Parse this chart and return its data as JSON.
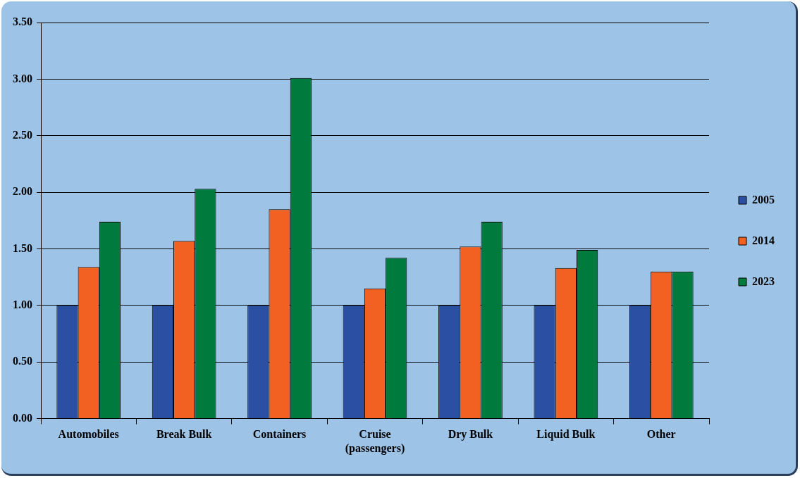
{
  "chart_data": {
    "type": "bar",
    "categories": [
      "Automobiles",
      "Break Bulk",
      "Containers",
      "Cruise (passengers)",
      "Dry Bulk",
      "Liquid Bulk",
      "Other"
    ],
    "series": [
      {
        "name": "2005",
        "color": "#2a4fa3",
        "values": [
          1.0,
          1.0,
          1.0,
          1.0,
          1.0,
          1.0,
          1.0
        ]
      },
      {
        "name": "2014",
        "color": "#f26122",
        "values": [
          1.34,
          1.57,
          1.85,
          1.15,
          1.52,
          1.33,
          1.3
        ]
      },
      {
        "name": "2023",
        "color": "#007a3d",
        "values": [
          1.74,
          2.03,
          3.01,
          1.42,
          1.74,
          1.49,
          1.3
        ]
      }
    ],
    "ylim": [
      0,
      3.5
    ],
    "yticks": [
      {
        "value": 0,
        "label": "0.00"
      },
      {
        "value": 0.5,
        "label": "0.50"
      },
      {
        "value": 1,
        "label": "1.00"
      },
      {
        "value": 1.5,
        "label": "1.50"
      },
      {
        "value": 2,
        "label": "2.00"
      },
      {
        "value": 2.5,
        "label": "2.50"
      },
      {
        "value": 3,
        "label": "3.00"
      },
      {
        "value": 3.5,
        "label": "3.50"
      }
    ],
    "grid": "y",
    "legend": "right"
  }
}
